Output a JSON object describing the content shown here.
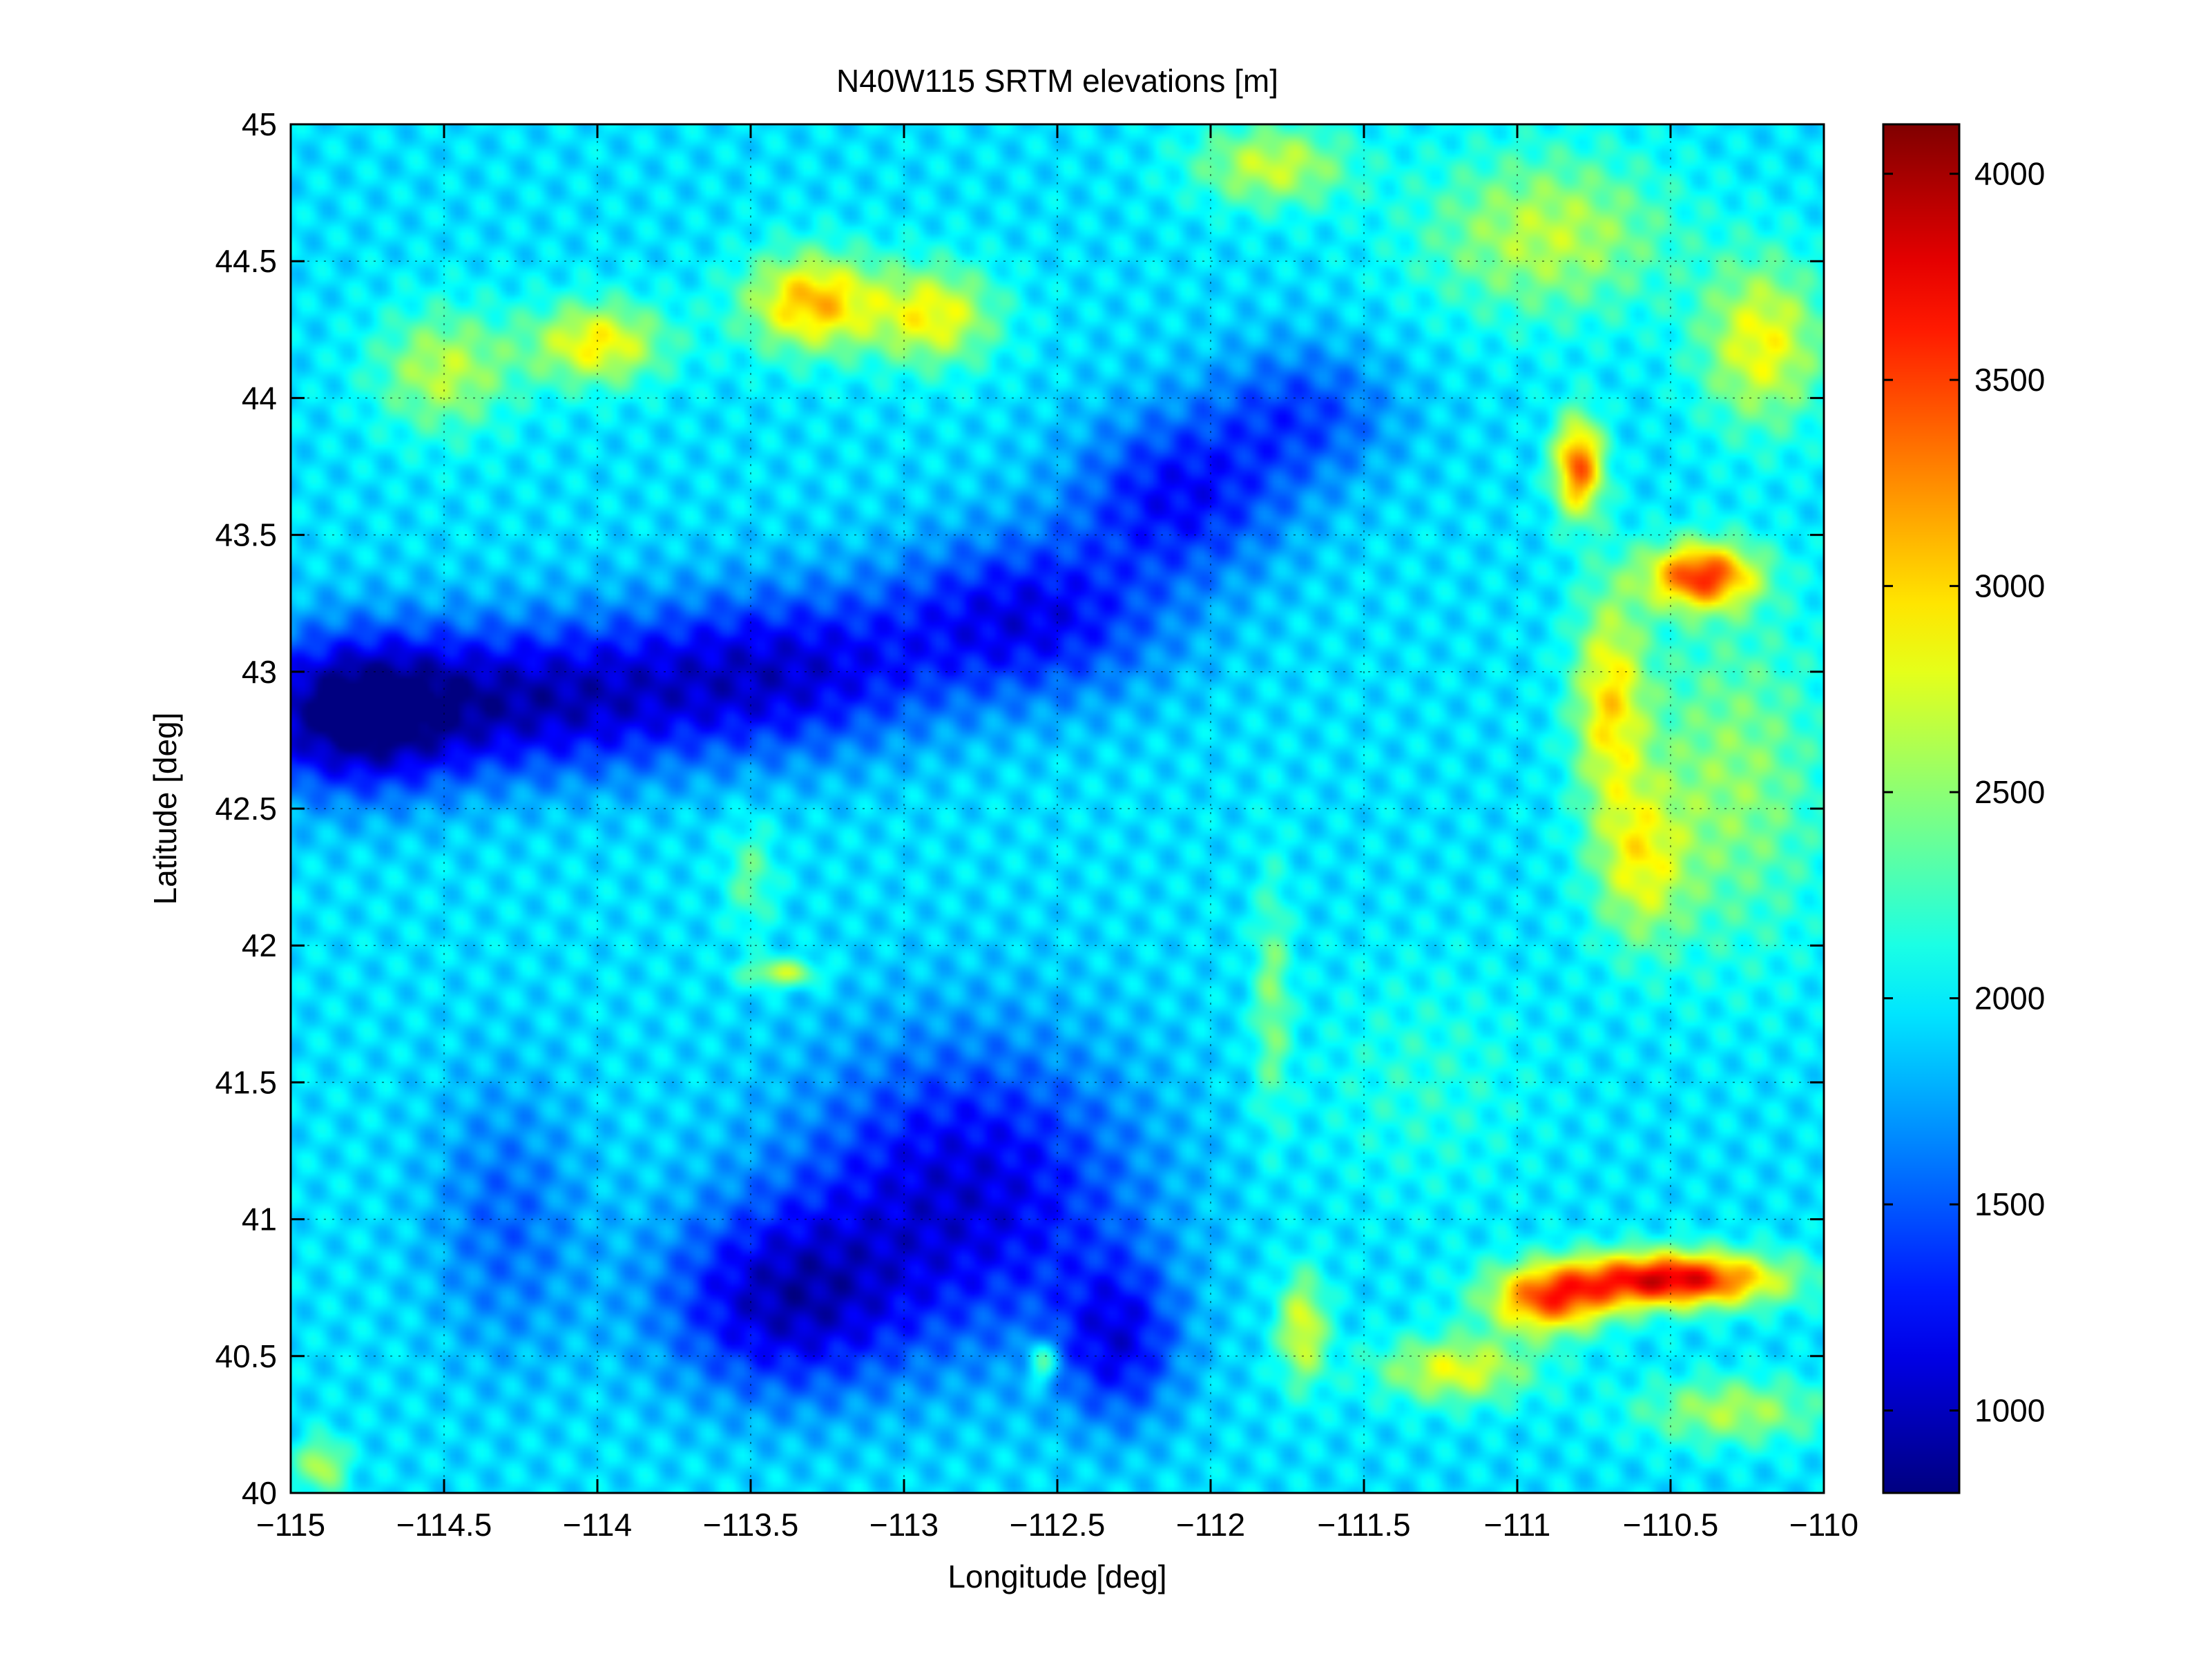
{
  "chart_data": {
    "type": "heatmap",
    "title": "N40W115 SRTM elevations [m]",
    "xlabel": "Longitude [deg]",
    "ylabel": "Latitude [deg]",
    "xlim": [
      -115,
      -110
    ],
    "ylim": [
      40,
      45
    ],
    "x_ticks": [
      -115,
      -114.5,
      -114,
      -113.5,
      -113,
      -112.5,
      -112,
      -111.5,
      -111,
      -110.5,
      -110
    ],
    "x_tick_labels": [
      "−115",
      "−114.5",
      "−114",
      "−113.5",
      "−113",
      "−112.5",
      "−112",
      "−111.5",
      "−111",
      "−110.5",
      "−110"
    ],
    "y_ticks": [
      40,
      40.5,
      41,
      41.5,
      42,
      42.5,
      43,
      43.5,
      44,
      44.5,
      45
    ],
    "y_tick_labels": [
      "40",
      "40.5",
      "41",
      "41.5",
      "42",
      "42.5",
      "43",
      "43.5",
      "44",
      "44.5",
      "45"
    ],
    "grid": true,
    "colormap": "jet",
    "colorbar": {
      "range": [
        800,
        4120
      ],
      "ticks": [
        1000,
        1500,
        2000,
        2500,
        3000,
        3500,
        4000
      ],
      "tick_labels": [
        "1000",
        "1500",
        "2000",
        "2500",
        "3000",
        "3500",
        "4000"
      ]
    },
    "background_elevation": 1950,
    "terrain_features": [
      {
        "lon": -114.8,
        "lat": 42.85,
        "elev": 800,
        "sx": 0.35,
        "sy": 0.28
      },
      {
        "lon": -114.2,
        "lat": 42.9,
        "elev": 1050,
        "sx": 0.55,
        "sy": 0.28
      },
      {
        "lon": -113.4,
        "lat": 43.0,
        "elev": 1150,
        "sx": 0.5,
        "sy": 0.3
      },
      {
        "lon": -112.6,
        "lat": 43.2,
        "elev": 1180,
        "sx": 0.45,
        "sy": 0.3
      },
      {
        "lon": -112.1,
        "lat": 43.65,
        "elev": 1250,
        "sx": 0.35,
        "sy": 0.3
      },
      {
        "lon": -111.7,
        "lat": 43.95,
        "elev": 1450,
        "sx": 0.3,
        "sy": 0.25
      },
      {
        "lon": -112.8,
        "lat": 41.1,
        "elev": 1100,
        "sx": 0.55,
        "sy": 0.55
      },
      {
        "lon": -113.4,
        "lat": 40.7,
        "elev": 1100,
        "sx": 0.4,
        "sy": 0.35
      },
      {
        "lon": -112.3,
        "lat": 40.55,
        "elev": 1250,
        "sx": 0.2,
        "sy": 0.3
      },
      {
        "lon": -114.3,
        "lat": 41.0,
        "elev": 1550,
        "sx": 0.25,
        "sy": 0.5
      },
      {
        "lon": -114.0,
        "lat": 44.2,
        "elev": 2900,
        "sx": 0.22,
        "sy": 0.15
      },
      {
        "lon": -114.5,
        "lat": 44.1,
        "elev": 2650,
        "sx": 0.22,
        "sy": 0.22
      },
      {
        "lon": -113.3,
        "lat": 44.35,
        "elev": 3100,
        "sx": 0.22,
        "sy": 0.18
      },
      {
        "lon": -112.9,
        "lat": 44.3,
        "elev": 2850,
        "sx": 0.2,
        "sy": 0.18
      },
      {
        "lon": -111.8,
        "lat": 44.85,
        "elev": 2700,
        "sx": 0.25,
        "sy": 0.15
      },
      {
        "lon": -110.9,
        "lat": 44.6,
        "elev": 2650,
        "sx": 0.4,
        "sy": 0.3
      },
      {
        "lon": -110.2,
        "lat": 44.2,
        "elev": 2850,
        "sx": 0.2,
        "sy": 0.3
      },
      {
        "lon": -110.8,
        "lat": 43.75,
        "elev": 3400,
        "sx": 0.08,
        "sy": 0.18
      },
      {
        "lon": -110.4,
        "lat": 43.35,
        "elev": 3500,
        "sx": 0.18,
        "sy": 0.12
      },
      {
        "lon": -110.7,
        "lat": 42.9,
        "elev": 2900,
        "sx": 0.12,
        "sy": 0.4
      },
      {
        "lon": -110.6,
        "lat": 42.3,
        "elev": 2700,
        "sx": 0.15,
        "sy": 0.3
      },
      {
        "lon": -110.3,
        "lat": 42.6,
        "elev": 2500,
        "sx": 0.3,
        "sy": 0.6
      },
      {
        "lon": -110.5,
        "lat": 40.78,
        "elev": 3850,
        "sx": 0.35,
        "sy": 0.1
      },
      {
        "lon": -110.9,
        "lat": 40.7,
        "elev": 3300,
        "sx": 0.2,
        "sy": 0.12
      },
      {
        "lon": -111.2,
        "lat": 40.45,
        "elev": 2800,
        "sx": 0.25,
        "sy": 0.12
      },
      {
        "lon": -110.3,
        "lat": 40.3,
        "elev": 2600,
        "sx": 0.3,
        "sy": 0.12
      },
      {
        "lon": -111.7,
        "lat": 40.6,
        "elev": 2800,
        "sx": 0.08,
        "sy": 0.2
      },
      {
        "lon": -111.3,
        "lat": 41.5,
        "elev": 2150,
        "sx": 0.35,
        "sy": 0.4
      },
      {
        "lon": -111.8,
        "lat": 41.8,
        "elev": 2450,
        "sx": 0.06,
        "sy": 0.45
      },
      {
        "lon": -113.4,
        "lat": 41.9,
        "elev": 2700,
        "sx": 0.12,
        "sy": 0.05
      },
      {
        "lon": -113.5,
        "lat": 42.25,
        "elev": 2350,
        "sx": 0.08,
        "sy": 0.2
      },
      {
        "lon": -112.55,
        "lat": 40.48,
        "elev": 2600,
        "sx": 0.05,
        "sy": 0.08
      },
      {
        "lon": -114.9,
        "lat": 40.1,
        "elev": 2650,
        "sx": 0.08,
        "sy": 0.1
      }
    ]
  }
}
